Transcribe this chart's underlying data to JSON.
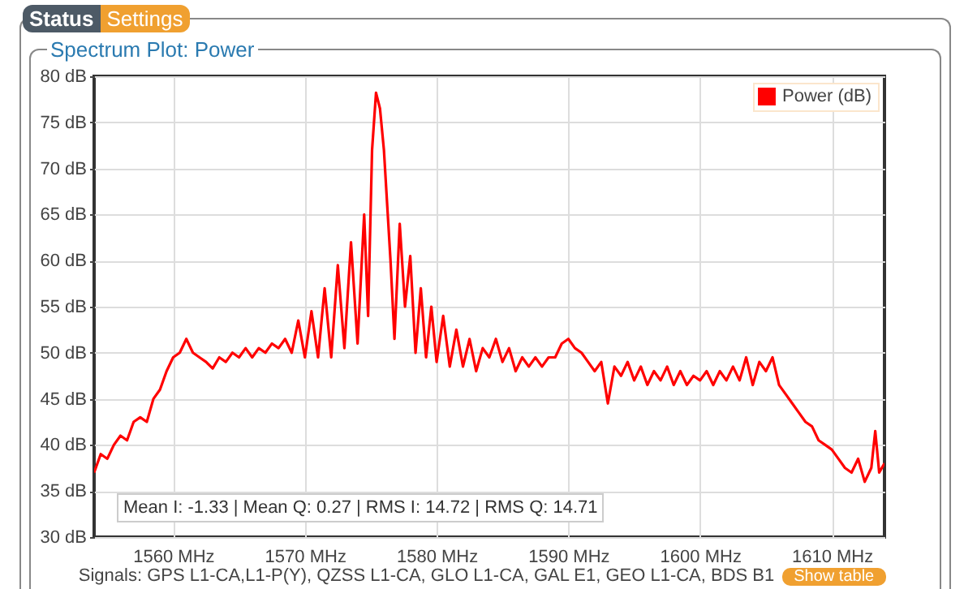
{
  "chart_data": {
    "type": "line",
    "title": "Spectrum Plot: Power",
    "annotations": [
      "Status",
      "Settings",
      "Mean I: -1.33 | Mean Q: 0.27 | RMS I: 14.72 | RMS Q: 14.71",
      "Signals: GPS L1-CA,L1-P(Y), QZSS L1-CA, GLO L1-CA, GAL E1, GEO L1-CA, BDS B1",
      "Show table"
    ],
    "x": [
      1554,
      1554.5,
      1555,
      1555.5,
      1556,
      1556.5,
      1557,
      1557.5,
      1558,
      1558.5,
      1559,
      1559.5,
      1560,
      1560.5,
      1561,
      1561.5,
      1562,
      1562.5,
      1563,
      1563.5,
      1564,
      1564.5,
      1565,
      1565.5,
      1566,
      1566.5,
      1567,
      1567.5,
      1568,
      1568.5,
      1569,
      1569.5,
      1570,
      1570.5,
      1571,
      1571.5,
      1572,
      1572.5,
      1573,
      1573.5,
      1574,
      1574.5,
      1574.8,
      1575.1,
      1575.4,
      1575.7,
      1576,
      1576.5,
      1576.8,
      1577.2,
      1577.6,
      1578,
      1578.4,
      1578.8,
      1579.2,
      1579.6,
      1580,
      1580.5,
      1581,
      1581.5,
      1582,
      1582.5,
      1583,
      1583.5,
      1584,
      1584.5,
      1585,
      1585.5,
      1586,
      1586.5,
      1587,
      1587.5,
      1588,
      1588.5,
      1589,
      1589.5,
      1590,
      1590.5,
      1591,
      1591.5,
      1592,
      1592.5,
      1593,
      1593.5,
      1594,
      1594.5,
      1595,
      1595.5,
      1596,
      1596.5,
      1597,
      1597.5,
      1598,
      1598.5,
      1599,
      1599.5,
      1600,
      1600.5,
      1601,
      1601.5,
      1602,
      1602.5,
      1603,
      1603.5,
      1604,
      1604.5,
      1605,
      1605.5,
      1606,
      1606.5,
      1607,
      1607.5,
      1608,
      1608.5,
      1609,
      1609.5,
      1610,
      1610.5,
      1611,
      1611.5,
      1612,
      1612.5,
      1613,
      1613.3,
      1613.6,
      1614
    ],
    "series": [
      {
        "name": "Power (dB)",
        "color": "#ff0000",
        "values": [
          37,
          39,
          38.5,
          40,
          41,
          40.5,
          42.5,
          43,
          42.5,
          45,
          46,
          48,
          49.5,
          50,
          51.5,
          50,
          49.5,
          49,
          48.3,
          49.5,
          49,
          50,
          49.5,
          50.5,
          49.5,
          50.5,
          50,
          51,
          50.5,
          51.5,
          50,
          53.5,
          49.5,
          54.5,
          49.5,
          57,
          49.5,
          59.5,
          50.5,
          62,
          51,
          65,
          54,
          72,
          78.2,
          76.5,
          72,
          60,
          51.5,
          64,
          55,
          60.5,
          50,
          57,
          49.5,
          55,
          49,
          54,
          48.5,
          52.5,
          48.5,
          51.5,
          48,
          50.5,
          49.5,
          51.5,
          49,
          50.5,
          48,
          49.5,
          48.5,
          49.5,
          48.5,
          49.5,
          49.5,
          51,
          51.5,
          50.5,
          50,
          49,
          48,
          49,
          44.5,
          48.5,
          47.5,
          49,
          47,
          48.5,
          46.5,
          48,
          47,
          48.5,
          46.5,
          48,
          46.5,
          47.5,
          47,
          48,
          46.5,
          48,
          47,
          48.5,
          47,
          49.5,
          46.5,
          49,
          48,
          49.5,
          46.5,
          45.5,
          44.5,
          43.5,
          42.5,
          42,
          40.5,
          40,
          39.5,
          38.5,
          37.5,
          37,
          38.5,
          36,
          37.5,
          41.5,
          37,
          38
        ]
      }
    ],
    "xlim": [
      1554,
      1614
    ],
    "xticks": [
      {
        "value": 1560,
        "label": "1560 MHz"
      },
      {
        "value": 1570,
        "label": "1570 MHz"
      },
      {
        "value": 1580,
        "label": "1580 MHz"
      },
      {
        "value": 1590,
        "label": "1590 MHz"
      },
      {
        "value": 1600,
        "label": "1600 MHz"
      },
      {
        "value": 1610,
        "label": "1610 MHz"
      }
    ],
    "ylim": [
      30,
      80
    ],
    "yticks": [
      {
        "value": 30,
        "label": "30 dB"
      },
      {
        "value": 35,
        "label": "35 dB"
      },
      {
        "value": 40,
        "label": "40 dB"
      },
      {
        "value": 45,
        "label": "45 dB"
      },
      {
        "value": 50,
        "label": "50 dB"
      },
      {
        "value": 55,
        "label": "55 dB"
      },
      {
        "value": 60,
        "label": "60 dB"
      },
      {
        "value": 65,
        "label": "65 dB"
      },
      {
        "value": 70,
        "label": "70 dB"
      },
      {
        "value": 75,
        "label": "75 dB"
      },
      {
        "value": 80,
        "label": "80 dB"
      }
    ],
    "grid": true,
    "legend": "top right",
    "marker": "none",
    "line_style": "solid"
  }
}
